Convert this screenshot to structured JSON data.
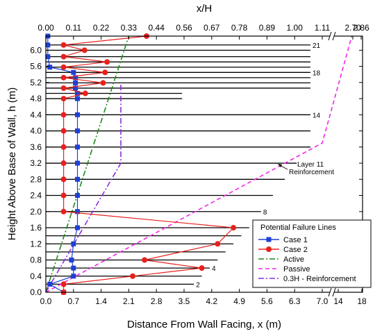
{
  "chart_data": {
    "type": "line",
    "xlabel": "Distance From Wall Facing, x (m)",
    "ylabel": "Height Above Base of Wall, h (m)",
    "x2label": "x/H",
    "xlim": [
      0,
      7.0
    ],
    "ylim": [
      0,
      6.35
    ],
    "x_break": {
      "at": 7.0,
      "resume_ticks": [
        "14",
        "18"
      ]
    },
    "x_ticks": [
      "0.0",
      "0.7",
      "1.4",
      "2.1",
      "2.8",
      "3.5",
      "4.2",
      "4.9",
      "5.6",
      "6.3",
      "7.0"
    ],
    "x_ticks_after_break": [
      "14",
      "18"
    ],
    "x2_ticks": [
      "0.00",
      "0.11",
      "0.22",
      "0.33",
      "0.44",
      "0.56",
      "0.67",
      "0.78",
      "0.89",
      "1.00",
      "1.11"
    ],
    "x2_ticks_after_break": [
      "2.70",
      "2.86"
    ],
    "y_ticks": [
      "0.0",
      "0.4",
      "0.8",
      "1.2",
      "1.6",
      "2.0",
      "2.4",
      "2.8",
      "3.2",
      "3.6",
      "4.0",
      "4.4",
      "4.8",
      "5.2",
      "5.6",
      "6.0"
    ],
    "reinforcement_layers": [
      {
        "h": 0.2,
        "length": 3.75
      },
      {
        "h": 0.4,
        "length": 3.95
      },
      {
        "h": 0.6,
        "length": 4.15
      },
      {
        "h": 0.8,
        "length": 4.35
      },
      {
        "h": 1.0,
        "length": 4.55
      },
      {
        "h": 1.2,
        "length": 4.75
      },
      {
        "h": 1.4,
        "length": 4.95
      },
      {
        "h": 1.6,
        "length": 5.15
      },
      {
        "h": 2.0,
        "length": 5.45
      },
      {
        "h": 2.4,
        "length": 5.75
      },
      {
        "h": 2.8,
        "length": 6.05
      },
      {
        "h": 3.2,
        "length": 6.35
      },
      {
        "h": 3.6,
        "length": 6.7
      },
      {
        "h": 4.0,
        "length": 6.7
      },
      {
        "h": 4.4,
        "length": 6.7
      },
      {
        "h": 4.8,
        "length": 3.45
      },
      {
        "h": 4.93,
        "length": 3.45
      },
      {
        "h": 5.06,
        "length": 6.7
      },
      {
        "h": 5.19,
        "length": 6.7
      },
      {
        "h": 5.32,
        "length": 6.7
      },
      {
        "h": 5.45,
        "length": 6.7
      },
      {
        "h": 5.58,
        "length": 6.7
      },
      {
        "h": 5.71,
        "length": 6.7
      },
      {
        "h": 5.84,
        "length": 6.7
      },
      {
        "h": 6.0,
        "length": 6.7
      },
      {
        "h": 6.13,
        "length": 6.7
      }
    ],
    "layer_labels": [
      {
        "text": "2",
        "h": 0.2
      },
      {
        "text": "4",
        "h": 0.6
      },
      {
        "text": "8",
        "h": 2.0
      },
      {
        "text": "14",
        "h": 4.4
      },
      {
        "text": "18",
        "h": 5.45
      },
      {
        "text": "21",
        "h": 6.13
      }
    ],
    "annotation": {
      "line1": "Layer 11",
      "line2": "Reinforcement"
    },
    "series": [
      {
        "name": "Case 1",
        "color": "#1f3fd6",
        "style": "solid",
        "marker": "square",
        "points": [
          [
            0.45,
            0
          ],
          [
            0.1,
            0.2
          ],
          [
            0.7,
            0.4
          ],
          [
            0.7,
            0.6
          ],
          [
            0.65,
            0.8
          ],
          [
            0.7,
            1.2
          ],
          [
            0.8,
            1.6
          ],
          [
            0.8,
            2.0
          ],
          [
            0.8,
            2.4
          ],
          [
            0.8,
            2.8
          ],
          [
            0.8,
            3.2
          ],
          [
            0.8,
            3.6
          ],
          [
            0.8,
            4.0
          ],
          [
            0.8,
            4.4
          ],
          [
            0.8,
            4.8
          ],
          [
            0.8,
            4.93
          ],
          [
            0.75,
            5.06
          ],
          [
            0.75,
            5.19
          ],
          [
            0.75,
            5.32
          ],
          [
            0.7,
            5.45
          ],
          [
            0.1,
            5.58
          ],
          [
            0.05,
            5.84
          ],
          [
            0.05,
            6.13
          ],
          [
            0.05,
            6.35
          ]
        ]
      },
      {
        "name": "Case 2",
        "color": "#e8201c",
        "style": "solid",
        "marker": "circle",
        "points": [
          [
            0.45,
            0
          ],
          [
            0.45,
            0.2
          ],
          [
            2.2,
            0.4
          ],
          [
            3.95,
            0.6
          ],
          [
            2.5,
            0.8
          ],
          [
            4.35,
            1.2
          ],
          [
            4.75,
            1.6
          ],
          [
            0.45,
            2.0
          ],
          [
            0.45,
            2.4
          ],
          [
            0.45,
            2.8
          ],
          [
            0.45,
            3.2
          ],
          [
            0.45,
            3.6
          ],
          [
            0.45,
            4.0
          ],
          [
            0.45,
            4.4
          ],
          [
            0.45,
            4.8
          ],
          [
            1.0,
            4.93
          ],
          [
            0.45,
            5.06
          ],
          [
            1.45,
            5.19
          ],
          [
            0.45,
            5.32
          ],
          [
            1.5,
            5.45
          ],
          [
            0.45,
            5.58
          ],
          [
            1.55,
            5.71
          ],
          [
            0.45,
            5.84
          ],
          [
            0.98,
            6.0
          ],
          [
            0.45,
            6.13
          ],
          [
            2.55,
            6.35
          ]
        ]
      },
      {
        "name": "Active",
        "color": "#1a8a1a",
        "style": "dashdot",
        "marker": "none",
        "points": [
          [
            0,
            0
          ],
          [
            2.1,
            6.35
          ]
        ]
      },
      {
        "name": "Passive",
        "color": "#f026e8",
        "style": "dash",
        "marker": "none",
        "points": [
          [
            0,
            0
          ],
          [
            7.0,
            3.7
          ],
          [
            7.55,
            6.35
          ]
        ]
      },
      {
        "name": "0.3H - Reinforcement",
        "color": "#8a2be2",
        "style": "dashdot",
        "marker": "none",
        "points": [
          [
            0,
            0
          ],
          [
            1.9,
            3.2
          ],
          [
            1.9,
            5.2
          ]
        ]
      }
    ],
    "legend": {
      "title": "Potential Failure Lines",
      "position": "bottom-right"
    },
    "grid": false
  }
}
